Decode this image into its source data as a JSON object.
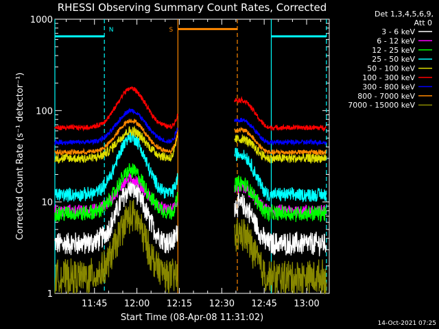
{
  "chart_data": {
    "type": "line",
    "title": "RHESSI Observing Summary Count Rates, Corrected",
    "xlabel": "Start Time (08-Apr-08 11:31:02)",
    "ylabel": "Corrected Count Rate (s⁻¹ detector⁻¹)",
    "y_scale": "log",
    "ylim": [
      1,
      1000
    ],
    "y_ticks": [
      {
        "value": 1,
        "label": "1"
      },
      {
        "value": 10,
        "label": "10"
      },
      {
        "value": 100,
        "label": "100"
      },
      {
        "value": 1000,
        "label": "1000"
      }
    ],
    "xlim_minutes": [
      691,
      788
    ],
    "x_ticks": [
      {
        "minute": 705,
        "label": "11:45"
      },
      {
        "minute": 720,
        "label": "12:00"
      },
      {
        "minute": 735,
        "label": "12:15"
      },
      {
        "minute": 750,
        "label": "12:30"
      },
      {
        "minute": 765,
        "label": "12:45"
      },
      {
        "minute": 780,
        "label": "13:00"
      }
    ],
    "legend_header": [
      "Det 1,3,4,5,6,9,",
      "Att 0"
    ],
    "legend_position": "right",
    "timestamp": "14-Oct-2021 07:25",
    "segments_minutes": [
      [
        691,
        734.5
      ],
      [
        754.5,
        787
      ]
    ],
    "series": [
      {
        "name": "3 - 6 keV",
        "color": "#ffffff",
        "base": 3.5,
        "peak": 14,
        "noise": 0.12,
        "jitter": 0.04,
        "end_factor": 1.4
      },
      {
        "name": "6 - 12 keV",
        "color": "#ff00ff",
        "base": 8,
        "peak": 18,
        "noise": 0.06,
        "jitter": 0.03,
        "end_factor": 1.3
      },
      {
        "name": "12 - 25 keV",
        "color": "#00ff00",
        "base": 7.5,
        "peak": 22,
        "noise": 0.08,
        "jitter": 0.04,
        "end_factor": 1.5
      },
      {
        "name": "25 - 50 keV",
        "color": "#00ffff",
        "base": 12,
        "peak": 52,
        "noise": 0.07,
        "jitter": 0.03,
        "end_factor": 1.6
      },
      {
        "name": "50 - 100 keV",
        "color": "#dddd00",
        "base": 30,
        "peak": 60,
        "noise": 0.05,
        "jitter": 0.02,
        "end_factor": 1.8
      },
      {
        "name": "100 - 300 keV",
        "color": "#ff0000",
        "base": 65,
        "peak": 175,
        "noise": 0.025,
        "jitter": 0.012,
        "end_factor": 1.4
      },
      {
        "name": "300 - 800 keV",
        "color": "#0000ff",
        "base": 45,
        "peak": 100,
        "noise": 0.025,
        "jitter": 0.012,
        "end_factor": 1.5
      },
      {
        "name": "800 - 7000 keV",
        "color": "#ff8800",
        "base": 35,
        "peak": 78,
        "noise": 0.025,
        "jitter": 0.012,
        "end_factor": 1.7
      },
      {
        "name": "7000 - 15000 keV",
        "color": "#888800",
        "base": 1.5,
        "peak": 7,
        "noise": 0.18,
        "jitter": 0.06,
        "end_factor": 1.0
      }
    ],
    "peak_minute": 718,
    "peak_width_minutes": 7,
    "flag_bars": [
      {
        "label": "N",
        "color": "#00ffff",
        "level": 650,
        "segments_minutes": [
          [
            691,
            708.5
          ],
          [
            767.5,
            787
          ]
        ]
      },
      {
        "label": "S",
        "color": "#ff8800",
        "level": 780,
        "segments_minutes": [
          [
            734.5,
            755.5
          ]
        ]
      }
    ],
    "markers": [
      {
        "color": "#00ffff",
        "style": "dashed",
        "minute": 708.5
      },
      {
        "color": "#00ffff",
        "style": "solid",
        "minute": 767.5
      },
      {
        "color": "#00ffff",
        "style": "dashed",
        "minute": 787
      },
      {
        "color": "#00ffff",
        "style": "solid",
        "minute": 691
      },
      {
        "color": "#ff8800",
        "style": "solid",
        "minute": 734.5
      },
      {
        "color": "#ff8800",
        "style": "dashed",
        "minute": 755.5
      }
    ]
  }
}
